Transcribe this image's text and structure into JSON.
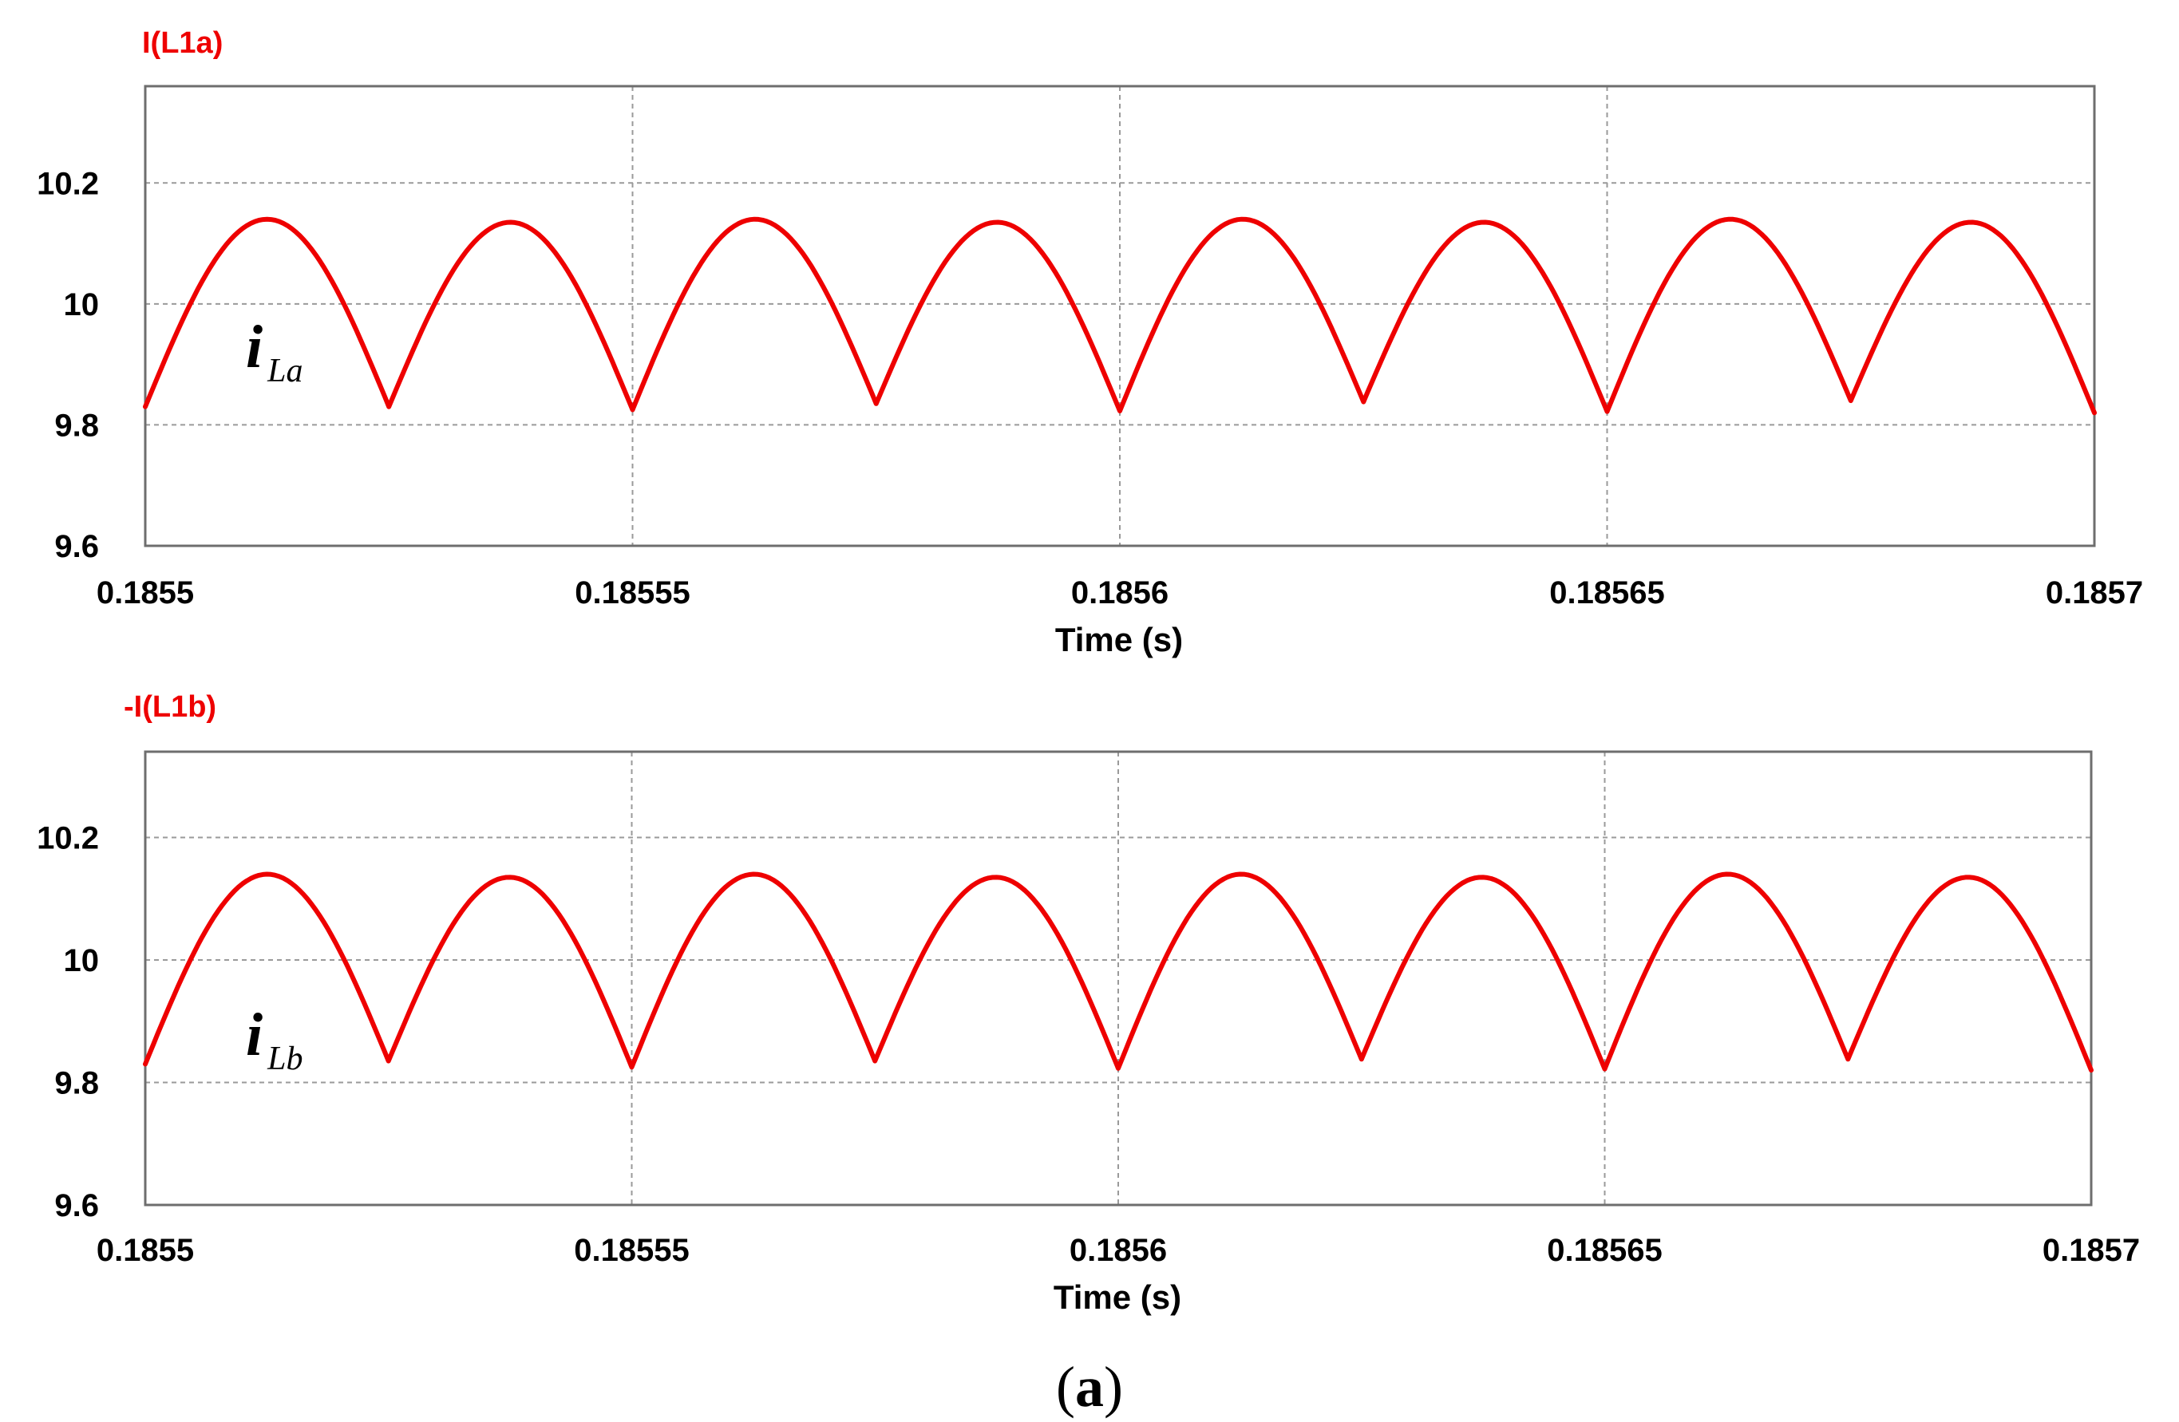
{
  "caption": {
    "open": "(",
    "letter": "a",
    "close": ")"
  },
  "colors": {
    "trace": "#ee0000",
    "title": "#ee0000"
  },
  "chart_data": [
    {
      "type": "line",
      "title": "I(L1a)",
      "xlabel": "Time (s)",
      "ylabel": "",
      "xlim": [
        0.1855,
        0.1857
      ],
      "ylim": [
        9.6,
        10.36
      ],
      "x_ticks": [
        "0.1855",
        "0.18555",
        "0.1856",
        "0.18565",
        "0.1857"
      ],
      "y_ticks": [
        "9.6",
        "9.8",
        "10",
        "10.2"
      ],
      "grid": true,
      "annotation": {
        "main": "i",
        "sub": "La",
        "x": 0.18551,
        "y": 9.9
      },
      "series": [
        {
          "name": "I(L1a)",
          "x": [
            0.1855,
            0.185511,
            0.185525,
            0.18555,
            0.185575,
            0.1856,
            0.185625,
            0.18565,
            0.185675,
            0.1857
          ],
          "y": [
            9.83,
            10.14,
            9.83,
            9.825,
            9.835,
            9.823,
            9.838,
            9.822,
            9.84,
            9.82
          ],
          "cusps_x": [
            0.1855,
            0.185525,
            0.18555,
            0.185575,
            0.1856,
            0.185625,
            0.18565,
            0.185675,
            0.1857
          ],
          "cusps_y": [
            9.83,
            9.83,
            9.825,
            9.835,
            9.823,
            9.838,
            9.822,
            9.84,
            9.82
          ],
          "peaks": [
            10.14,
            10.135,
            10.14,
            10.135,
            10.14,
            10.135,
            10.14,
            10.135
          ]
        }
      ]
    },
    {
      "type": "line",
      "title": "-I(L1b)",
      "xlabel": "Time (s)",
      "ylabel": "",
      "xlim": [
        0.1855,
        0.1857
      ],
      "ylim": [
        9.6,
        10.34
      ],
      "x_ticks": [
        "0.1855",
        "0.18555",
        "0.1856",
        "0.18565",
        "0.1857"
      ],
      "y_ticks": [
        "9.6",
        "9.8",
        "10",
        "10.2"
      ],
      "grid": true,
      "annotation": {
        "main": "i",
        "sub": "Lb",
        "x": 0.18551,
        "y": 9.89
      },
      "series": [
        {
          "name": "-I(L1b)",
          "cusps_x": [
            0.1855,
            0.185525,
            0.18555,
            0.185575,
            0.1856,
            0.185625,
            0.18565,
            0.185675,
            0.1857
          ],
          "cusps_y": [
            9.83,
            9.835,
            9.825,
            9.835,
            9.823,
            9.838,
            9.822,
            9.838,
            9.82
          ],
          "peaks": [
            10.14,
            10.135,
            10.14,
            10.135,
            10.14,
            10.135,
            10.14,
            10.135
          ]
        }
      ]
    }
  ]
}
